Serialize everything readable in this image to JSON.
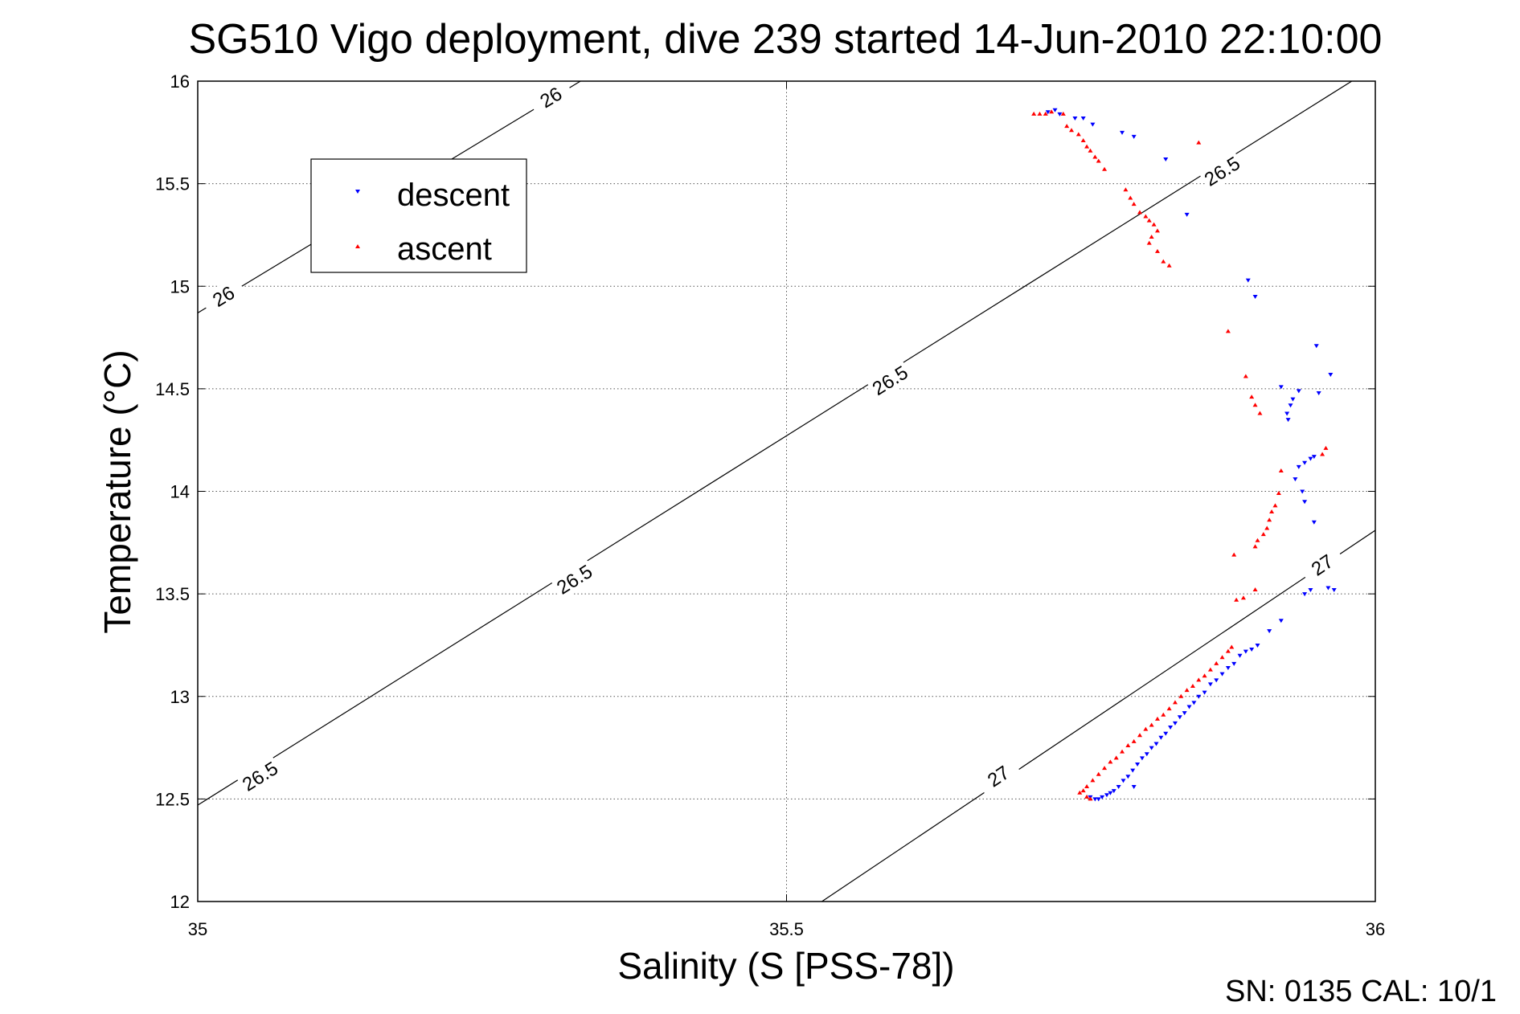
{
  "chart_data": {
    "type": "scatter",
    "title": "SG510 Vigo deployment, dive 239 started 14-Jun-2010 22:10:00",
    "xlabel": "Salinity (S [PSS-78])",
    "ylabel": "Temperature (°C)",
    "xlim": [
      35,
      36
    ],
    "ylim": [
      12,
      16
    ],
    "xticks": [
      35,
      35.5,
      36
    ],
    "xtick_labels": [
      "35",
      "35.5",
      "36"
    ],
    "yticks": [
      12,
      12.5,
      13,
      13.5,
      14,
      14.5,
      15,
      15.5,
      16
    ],
    "ytick_labels": [
      "12",
      "12.5",
      "13",
      "13.5",
      "14",
      "14.5",
      "15",
      "15.5",
      "16"
    ],
    "grid": true,
    "legend_position": "top-left",
    "colors": {
      "descent": "#0000ff",
      "ascent": "#ff0000",
      "contour": "#000000"
    },
    "density_contours": [
      {
        "level": "26",
        "points": [
          [
            35,
            14.87
          ],
          [
            35.325,
            16
          ]
        ],
        "labels": [
          [
            35.022,
            14.95
          ],
          [
            35.3,
            15.92
          ]
        ]
      },
      {
        "level": "26.5",
        "points": [
          [
            35,
            12.47
          ],
          [
            35.98,
            16
          ]
        ],
        "labels": [
          [
            35.053,
            12.61
          ],
          [
            35.32,
            13.57
          ],
          [
            35.588,
            14.54
          ],
          [
            35.87,
            15.56
          ]
        ]
      },
      {
        "level": "27",
        "points": [
          [
            35.53,
            12
          ],
          [
            36,
            13.81
          ]
        ],
        "labels": [
          [
            35.68,
            12.61
          ],
          [
            35.955,
            13.64
          ]
        ]
      }
    ],
    "series": [
      {
        "name": "descent",
        "marker": "triangle-down",
        "points": [
          [
            35.722,
            15.85
          ],
          [
            35.728,
            15.86
          ],
          [
            35.732,
            15.84
          ],
          [
            35.745,
            15.82
          ],
          [
            35.752,
            15.82
          ],
          [
            35.76,
            15.79
          ],
          [
            35.785,
            15.75
          ],
          [
            35.795,
            15.73
          ],
          [
            35.822,
            15.62
          ],
          [
            35.84,
            15.35
          ],
          [
            35.892,
            15.03
          ],
          [
            35.898,
            14.95
          ],
          [
            35.95,
            14.71
          ],
          [
            35.952,
            14.48
          ],
          [
            35.962,
            14.57
          ],
          [
            35.935,
            14.49
          ],
          [
            35.93,
            14.45
          ],
          [
            35.928,
            14.42
          ],
          [
            35.925,
            14.38
          ],
          [
            35.926,
            14.35
          ],
          [
            35.92,
            14.51
          ],
          [
            35.94,
            14.14
          ],
          [
            35.945,
            14.16
          ],
          [
            35.948,
            14.17
          ],
          [
            35.935,
            14.12
          ],
          [
            35.932,
            14.06
          ],
          [
            35.938,
            14.0
          ],
          [
            35.94,
            13.95
          ],
          [
            35.948,
            13.85
          ],
          [
            35.965,
            13.52
          ],
          [
            35.94,
            13.5
          ],
          [
            35.945,
            13.52
          ],
          [
            35.96,
            13.53
          ],
          [
            35.92,
            13.37
          ],
          [
            35.91,
            13.32
          ],
          [
            35.9,
            13.25
          ],
          [
            35.895,
            13.23
          ],
          [
            35.89,
            13.22
          ],
          [
            35.885,
            13.2
          ],
          [
            35.88,
            13.16
          ],
          [
            35.875,
            13.14
          ],
          [
            35.87,
            13.11
          ],
          [
            35.865,
            13.08
          ],
          [
            35.86,
            13.06
          ],
          [
            35.855,
            13.02
          ],
          [
            35.85,
            13.0
          ],
          [
            35.846,
            12.97
          ],
          [
            35.842,
            12.95
          ],
          [
            35.838,
            12.92
          ],
          [
            35.834,
            12.9
          ],
          [
            35.83,
            12.87
          ],
          [
            35.826,
            12.85
          ],
          [
            35.822,
            12.82
          ],
          [
            35.818,
            12.8
          ],
          [
            35.814,
            12.77
          ],
          [
            35.81,
            12.75
          ],
          [
            35.806,
            12.72
          ],
          [
            35.802,
            12.7
          ],
          [
            35.798,
            12.67
          ],
          [
            35.794,
            12.64
          ],
          [
            35.79,
            12.61
          ],
          [
            35.786,
            12.59
          ],
          [
            35.795,
            12.56
          ],
          [
            35.782,
            12.56
          ],
          [
            35.778,
            12.54
          ],
          [
            35.775,
            12.53
          ],
          [
            35.772,
            12.52
          ],
          [
            35.768,
            12.51
          ],
          [
            35.765,
            12.5
          ],
          [
            35.762,
            12.5
          ],
          [
            35.758,
            12.51
          ]
        ]
      },
      {
        "name": "ascent",
        "marker": "triangle-up",
        "points": [
          [
            35.71,
            15.84
          ],
          [
            35.715,
            15.84
          ],
          [
            35.72,
            15.84
          ],
          [
            35.725,
            15.85
          ],
          [
            35.735,
            15.84
          ],
          [
            35.738,
            15.78
          ],
          [
            35.742,
            15.76
          ],
          [
            35.748,
            15.74
          ],
          [
            35.752,
            15.71
          ],
          [
            35.755,
            15.68
          ],
          [
            35.758,
            15.66
          ],
          [
            35.762,
            15.63
          ],
          [
            35.765,
            15.61
          ],
          [
            35.77,
            15.57
          ],
          [
            35.788,
            15.47
          ],
          [
            35.792,
            15.43
          ],
          [
            35.795,
            15.4
          ],
          [
            35.8,
            15.36
          ],
          [
            35.805,
            15.34
          ],
          [
            35.808,
            15.32
          ],
          [
            35.812,
            15.3
          ],
          [
            35.815,
            15.27
          ],
          [
            35.81,
            15.24
          ],
          [
            35.808,
            15.21
          ],
          [
            35.815,
            15.17
          ],
          [
            35.82,
            15.12
          ],
          [
            35.825,
            15.1
          ],
          [
            35.85,
            15.7
          ],
          [
            35.875,
            14.78
          ],
          [
            35.89,
            14.56
          ],
          [
            35.895,
            14.46
          ],
          [
            35.898,
            14.42
          ],
          [
            35.902,
            14.38
          ],
          [
            35.958,
            14.21
          ],
          [
            35.955,
            14.18
          ],
          [
            35.92,
            14.1
          ],
          [
            35.918,
            13.99
          ],
          [
            35.915,
            13.93
          ],
          [
            35.912,
            13.9
          ],
          [
            35.91,
            13.86
          ],
          [
            35.908,
            13.82
          ],
          [
            35.905,
            13.79
          ],
          [
            35.9,
            13.76
          ],
          [
            35.898,
            13.73
          ],
          [
            35.88,
            13.69
          ],
          [
            35.882,
            13.47
          ],
          [
            35.888,
            13.48
          ],
          [
            35.898,
            13.52
          ],
          [
            35.878,
            13.24
          ],
          [
            35.875,
            13.22
          ],
          [
            35.87,
            13.19
          ],
          [
            35.865,
            13.16
          ],
          [
            35.86,
            13.13
          ],
          [
            35.855,
            13.1
          ],
          [
            35.85,
            13.08
          ],
          [
            35.845,
            13.05
          ],
          [
            35.84,
            13.03
          ],
          [
            35.835,
            13.0
          ],
          [
            35.83,
            12.97
          ],
          [
            35.825,
            12.94
          ],
          [
            35.82,
            12.91
          ],
          [
            35.815,
            12.89
          ],
          [
            35.81,
            12.86
          ],
          [
            35.805,
            12.84
          ],
          [
            35.8,
            12.81
          ],
          [
            35.795,
            12.78
          ],
          [
            35.79,
            12.76
          ],
          [
            35.785,
            12.73
          ],
          [
            35.78,
            12.7
          ],
          [
            35.775,
            12.68
          ],
          [
            35.77,
            12.65
          ],
          [
            35.765,
            12.62
          ],
          [
            35.76,
            12.59
          ],
          [
            35.755,
            12.56
          ],
          [
            35.752,
            12.54
          ],
          [
            35.749,
            12.53
          ],
          [
            35.755,
            12.51
          ],
          [
            35.758,
            12.5
          ]
        ]
      }
    ]
  },
  "footer": {
    "calibration": "SN: 0135  CAL: 10/1"
  }
}
